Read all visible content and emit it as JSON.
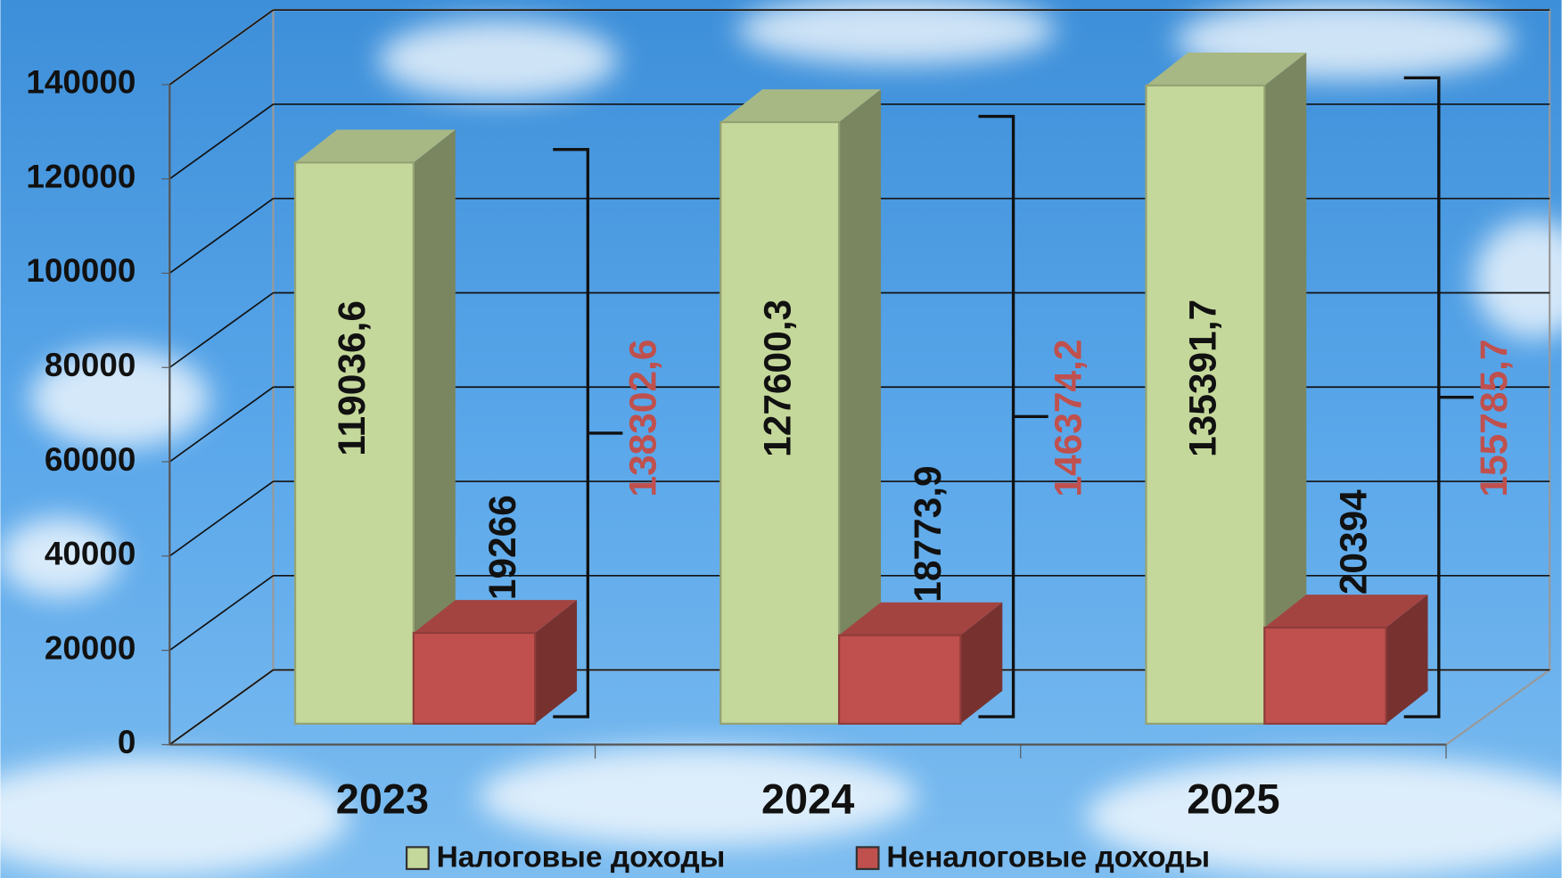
{
  "chart_data": {
    "type": "bar3d",
    "categories": [
      "2023",
      "2024",
      "2025"
    ],
    "series": [
      {
        "name": "Налоговые доходы",
        "color": "#c5d89b",
        "values": [
          119036.6,
          127600.3,
          135391.7
        ],
        "value_labels": [
          "119036,6",
          "127600,3",
          "135391,7"
        ]
      },
      {
        "name": "Неналоговые доходы",
        "color": "#c0504d",
        "values": [
          19266,
          18773.9,
          20394
        ],
        "value_labels": [
          "19266",
          "18773,9",
          "20394"
        ]
      }
    ],
    "totals": {
      "color": "#c0504d",
      "values": [
        138302.6,
        146374.2,
        155785.7
      ],
      "value_labels": [
        "138302,6",
        "146374,2",
        "155785,7"
      ]
    },
    "ylim": [
      0,
      140000
    ],
    "yticks": [
      0,
      20000,
      40000,
      60000,
      80000,
      100000,
      120000,
      140000
    ],
    "grid": true
  }
}
